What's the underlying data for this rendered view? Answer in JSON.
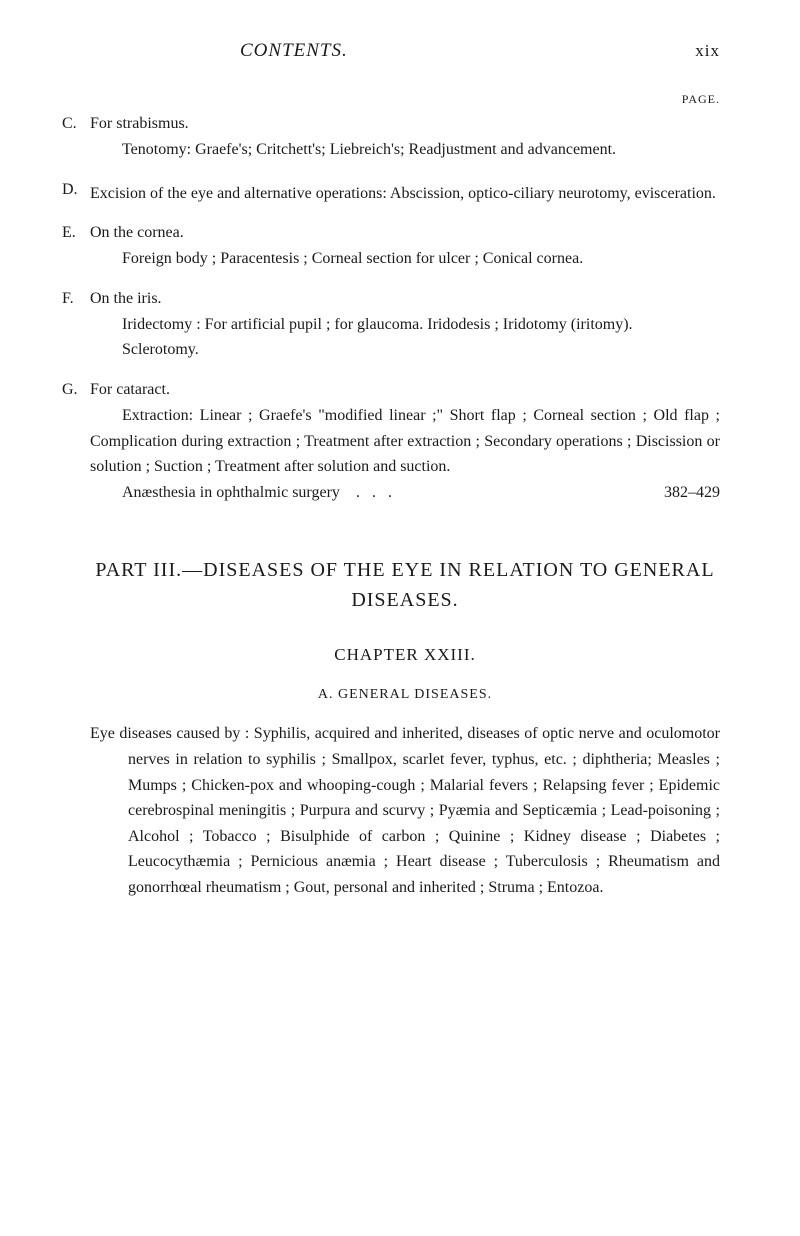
{
  "header": {
    "title": "CONTENTS.",
    "pageNumber": "xix",
    "pageLabel": "PAGE."
  },
  "sections": [
    {
      "letter": "C.",
      "heading": "For strabismus.",
      "body": "Tenotomy: Graefe's; Critchett's; Liebreich's; Readjustment and advancement."
    },
    {
      "letter": "D.",
      "heading": "",
      "body": "Excision of the eye and alternative operations: Abscission, optico-ciliary neurotomy, evisceration."
    },
    {
      "letter": "E.",
      "heading": "On the cornea.",
      "body": "Foreign body ; Paracentesis ; Corneal section for ulcer ; Conical cornea."
    },
    {
      "letter": "F.",
      "heading": "On the iris.",
      "body": "Iridectomy : For artificial pupil ; for glaucoma. Iridodesis ; Iridotomy (iritomy).",
      "extra": "Sclerotomy."
    },
    {
      "letter": "G.",
      "heading": "For cataract.",
      "body": "Extraction: Linear ; Graefe's \"modified linear ;\" Short flap ; Corneal section ; Old flap ; Complication during extraction ; Treatment after extraction ; Secondary operations ; Discission or solution ; Suction ; Treatment after solution and suction.",
      "lastLine": "Anæsthesia in ophthalmic surgery",
      "pageRef": "382–429"
    }
  ],
  "part": {
    "heading": "PART III.—DISEASES OF THE EYE IN RELATION TO GENERAL DISEASES."
  },
  "chapter": {
    "heading": "CHAPTER XXIII."
  },
  "subsection": {
    "heading": "A. GENERAL DISEASES."
  },
  "eyeDiseases": {
    "text": "Eye diseases caused by : Syphilis, acquired and inherited, diseases of optic nerve and oculomotor nerves in relation to syphilis ; Smallpox, scarlet fever, typhus, etc. ; diphtheria; Measles ; Mumps ; Chicken-pox and whooping-cough ; Malarial fevers ; Relapsing fever ; Epidemic cerebrospinal meningitis ; Purpura and scurvy ; Pyæmia and Septicæmia ; Lead-poisoning ; Alcohol ; Tobacco ; Bisulphide of carbon ; Quinine ; Kidney disease ; Diabetes ; Leucocythæmia ; Pernicious anæmia ; Heart disease ; Tuberculosis ; Rheumatism and gonorrhœal rheumatism ; Gout, personal and inherited ; Struma ; Entozoa."
  }
}
